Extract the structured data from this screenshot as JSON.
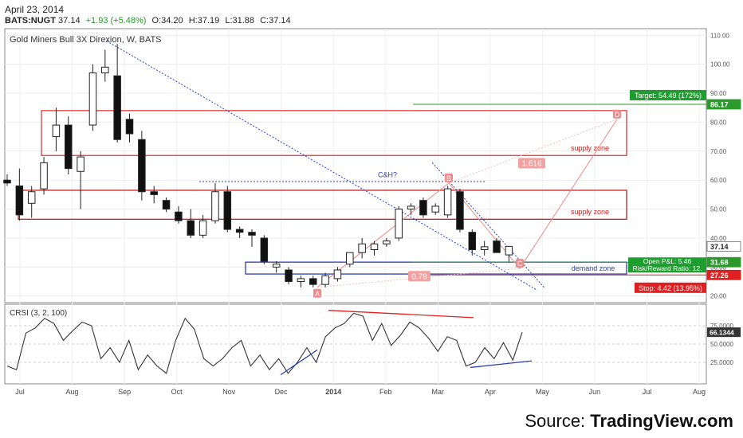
{
  "header": {
    "date": "April 23, 2014",
    "symbol": "BATS:NUGT",
    "last": "37.14",
    "change": "+1.93 (+5.48%)",
    "open": "O:34.20",
    "high": "H:37.19",
    "low": "L:31.88",
    "close": "C:37.14"
  },
  "source": {
    "prefix": "Source: ",
    "name": "TradingView.com"
  },
  "chart_data": [
    {
      "type": "candlestick",
      "title": "Gold Miners Bull 3X Direxion, W, BATS",
      "x_ticks": [
        "Jul",
        "Aug",
        "Sep",
        "Oct",
        "Nov",
        "Dec",
        "2014",
        "Feb",
        "Mar",
        "Apr",
        "May",
        "Jun",
        "Jul",
        "Aug"
      ],
      "y_ticks": [
        "110.00",
        "100.00",
        "90.00",
        "80.00",
        "70.00",
        "60.00",
        "50.00",
        "40.00",
        "30.00",
        "20.00"
      ],
      "ylim": [
        18,
        112
      ],
      "grid": true,
      "candles": [
        {
          "o": 60,
          "h": 62,
          "l": 58,
          "c": 59
        },
        {
          "o": 58,
          "h": 64,
          "l": 46,
          "c": 48
        },
        {
          "o": 52,
          "h": 58,
          "l": 47,
          "c": 56
        },
        {
          "o": 57,
          "h": 68,
          "l": 55,
          "c": 66
        },
        {
          "o": 75,
          "h": 85,
          "l": 70,
          "c": 79
        },
        {
          "o": 79,
          "h": 82,
          "l": 62,
          "c": 64
        },
        {
          "o": 63,
          "h": 70,
          "l": 50,
          "c": 68
        },
        {
          "o": 79,
          "h": 100,
          "l": 77,
          "c": 97
        },
        {
          "o": 97,
          "h": 105,
          "l": 94,
          "c": 99
        },
        {
          "o": 96,
          "h": 107,
          "l": 73,
          "c": 74
        },
        {
          "o": 81,
          "h": 83,
          "l": 73,
          "c": 76
        },
        {
          "o": 74,
          "h": 77,
          "l": 53,
          "c": 56
        },
        {
          "o": 56,
          "h": 58,
          "l": 52,
          "c": 55
        },
        {
          "o": 53,
          "h": 54,
          "l": 49,
          "c": 50
        },
        {
          "o": 49,
          "h": 51,
          "l": 45,
          "c": 46
        },
        {
          "o": 46,
          "h": 50,
          "l": 40,
          "c": 41
        },
        {
          "o": 41,
          "h": 48,
          "l": 40,
          "c": 46
        },
        {
          "o": 46,
          "h": 59,
          "l": 45,
          "c": 56
        },
        {
          "o": 56,
          "h": 58,
          "l": 42,
          "c": 43
        },
        {
          "o": 43,
          "h": 44,
          "l": 40,
          "c": 42
        },
        {
          "o": 42,
          "h": 43,
          "l": 37,
          "c": 41
        },
        {
          "o": 40,
          "h": 41,
          "l": 31,
          "c": 32
        },
        {
          "o": 30,
          "h": 32,
          "l": 28,
          "c": 31
        },
        {
          "o": 29,
          "h": 30,
          "l": 24,
          "c": 25
        },
        {
          "o": 25,
          "h": 27,
          "l": 23,
          "c": 26
        },
        {
          "o": 26,
          "h": 27,
          "l": 23,
          "c": 24
        },
        {
          "o": 24,
          "h": 28,
          "l": 23,
          "c": 27
        },
        {
          "o": 26,
          "h": 30,
          "l": 25,
          "c": 29
        },
        {
          "o": 31,
          "h": 35,
          "l": 30,
          "c": 35
        },
        {
          "o": 35,
          "h": 40,
          "l": 33,
          "c": 38
        },
        {
          "o": 36,
          "h": 39,
          "l": 34,
          "c": 38
        },
        {
          "o": 38,
          "h": 40,
          "l": 37,
          "c": 39
        },
        {
          "o": 40,
          "h": 51,
          "l": 39,
          "c": 50
        },
        {
          "o": 50,
          "h": 52,
          "l": 48,
          "c": 51
        },
        {
          "o": 53,
          "h": 54,
          "l": 47,
          "c": 48
        },
        {
          "o": 49,
          "h": 52,
          "l": 48,
          "c": 51
        },
        {
          "o": 48,
          "h": 58,
          "l": 47,
          "c": 57
        },
        {
          "o": 56,
          "h": 57,
          "l": 42,
          "c": 43
        },
        {
          "o": 42,
          "h": 43,
          "l": 34,
          "c": 36
        },
        {
          "o": 36,
          "h": 39,
          "l": 34,
          "c": 37
        },
        {
          "o": 39,
          "h": 40,
          "l": 35,
          "c": 35
        },
        {
          "o": 34.2,
          "h": 37.19,
          "l": 31.88,
          "c": 37.14
        }
      ],
      "price_labels": [
        {
          "text": "86.17",
          "value": 86.17,
          "color": "#2a9a2a"
        },
        {
          "text": "37.14",
          "value": 37.14,
          "color": "#ffffff"
        },
        {
          "text": "31.68",
          "value": 31.68,
          "color": "#2a9a2a"
        },
        {
          "text": "27.26",
          "value": 27.26,
          "color": "#e02020"
        }
      ],
      "annotations": {
        "target": "Target: 54.49 (172%)",
        "open_pl": "Open P&L: 5.46",
        "risk_reward": "Risk/Reward Ratio: 12.",
        "stop": "Stop: 4.42 (13.95%)",
        "supply_zone_upper": "supply zone",
        "supply_zone_lower": "supply zone",
        "demand_zone": "demand zone",
        "cup_handle": "C&H?",
        "fib_1616": "1.616",
        "fib_078": "0.78",
        "points": [
          "A",
          "B",
          "C",
          "D"
        ]
      }
    },
    {
      "type": "line",
      "title": "CRSI (3, 2, 100)",
      "last_value": "66.1344",
      "y_ticks": [
        "75.0000",
        "50.0000",
        "25.0000"
      ],
      "ylim": [
        0,
        100
      ],
      "values": [
        20,
        15,
        65,
        72,
        85,
        78,
        55,
        68,
        80,
        75,
        30,
        45,
        25,
        55,
        15,
        35,
        20,
        10,
        55,
        85,
        70,
        30,
        20,
        30,
        45,
        55,
        20,
        35,
        15,
        30,
        10,
        25,
        45,
        25,
        60,
        72,
        78,
        92,
        88,
        55,
        78,
        48,
        62,
        80,
        72,
        58,
        40,
        60,
        55,
        20,
        25,
        45,
        30,
        52,
        28,
        66.13
      ]
    }
  ]
}
